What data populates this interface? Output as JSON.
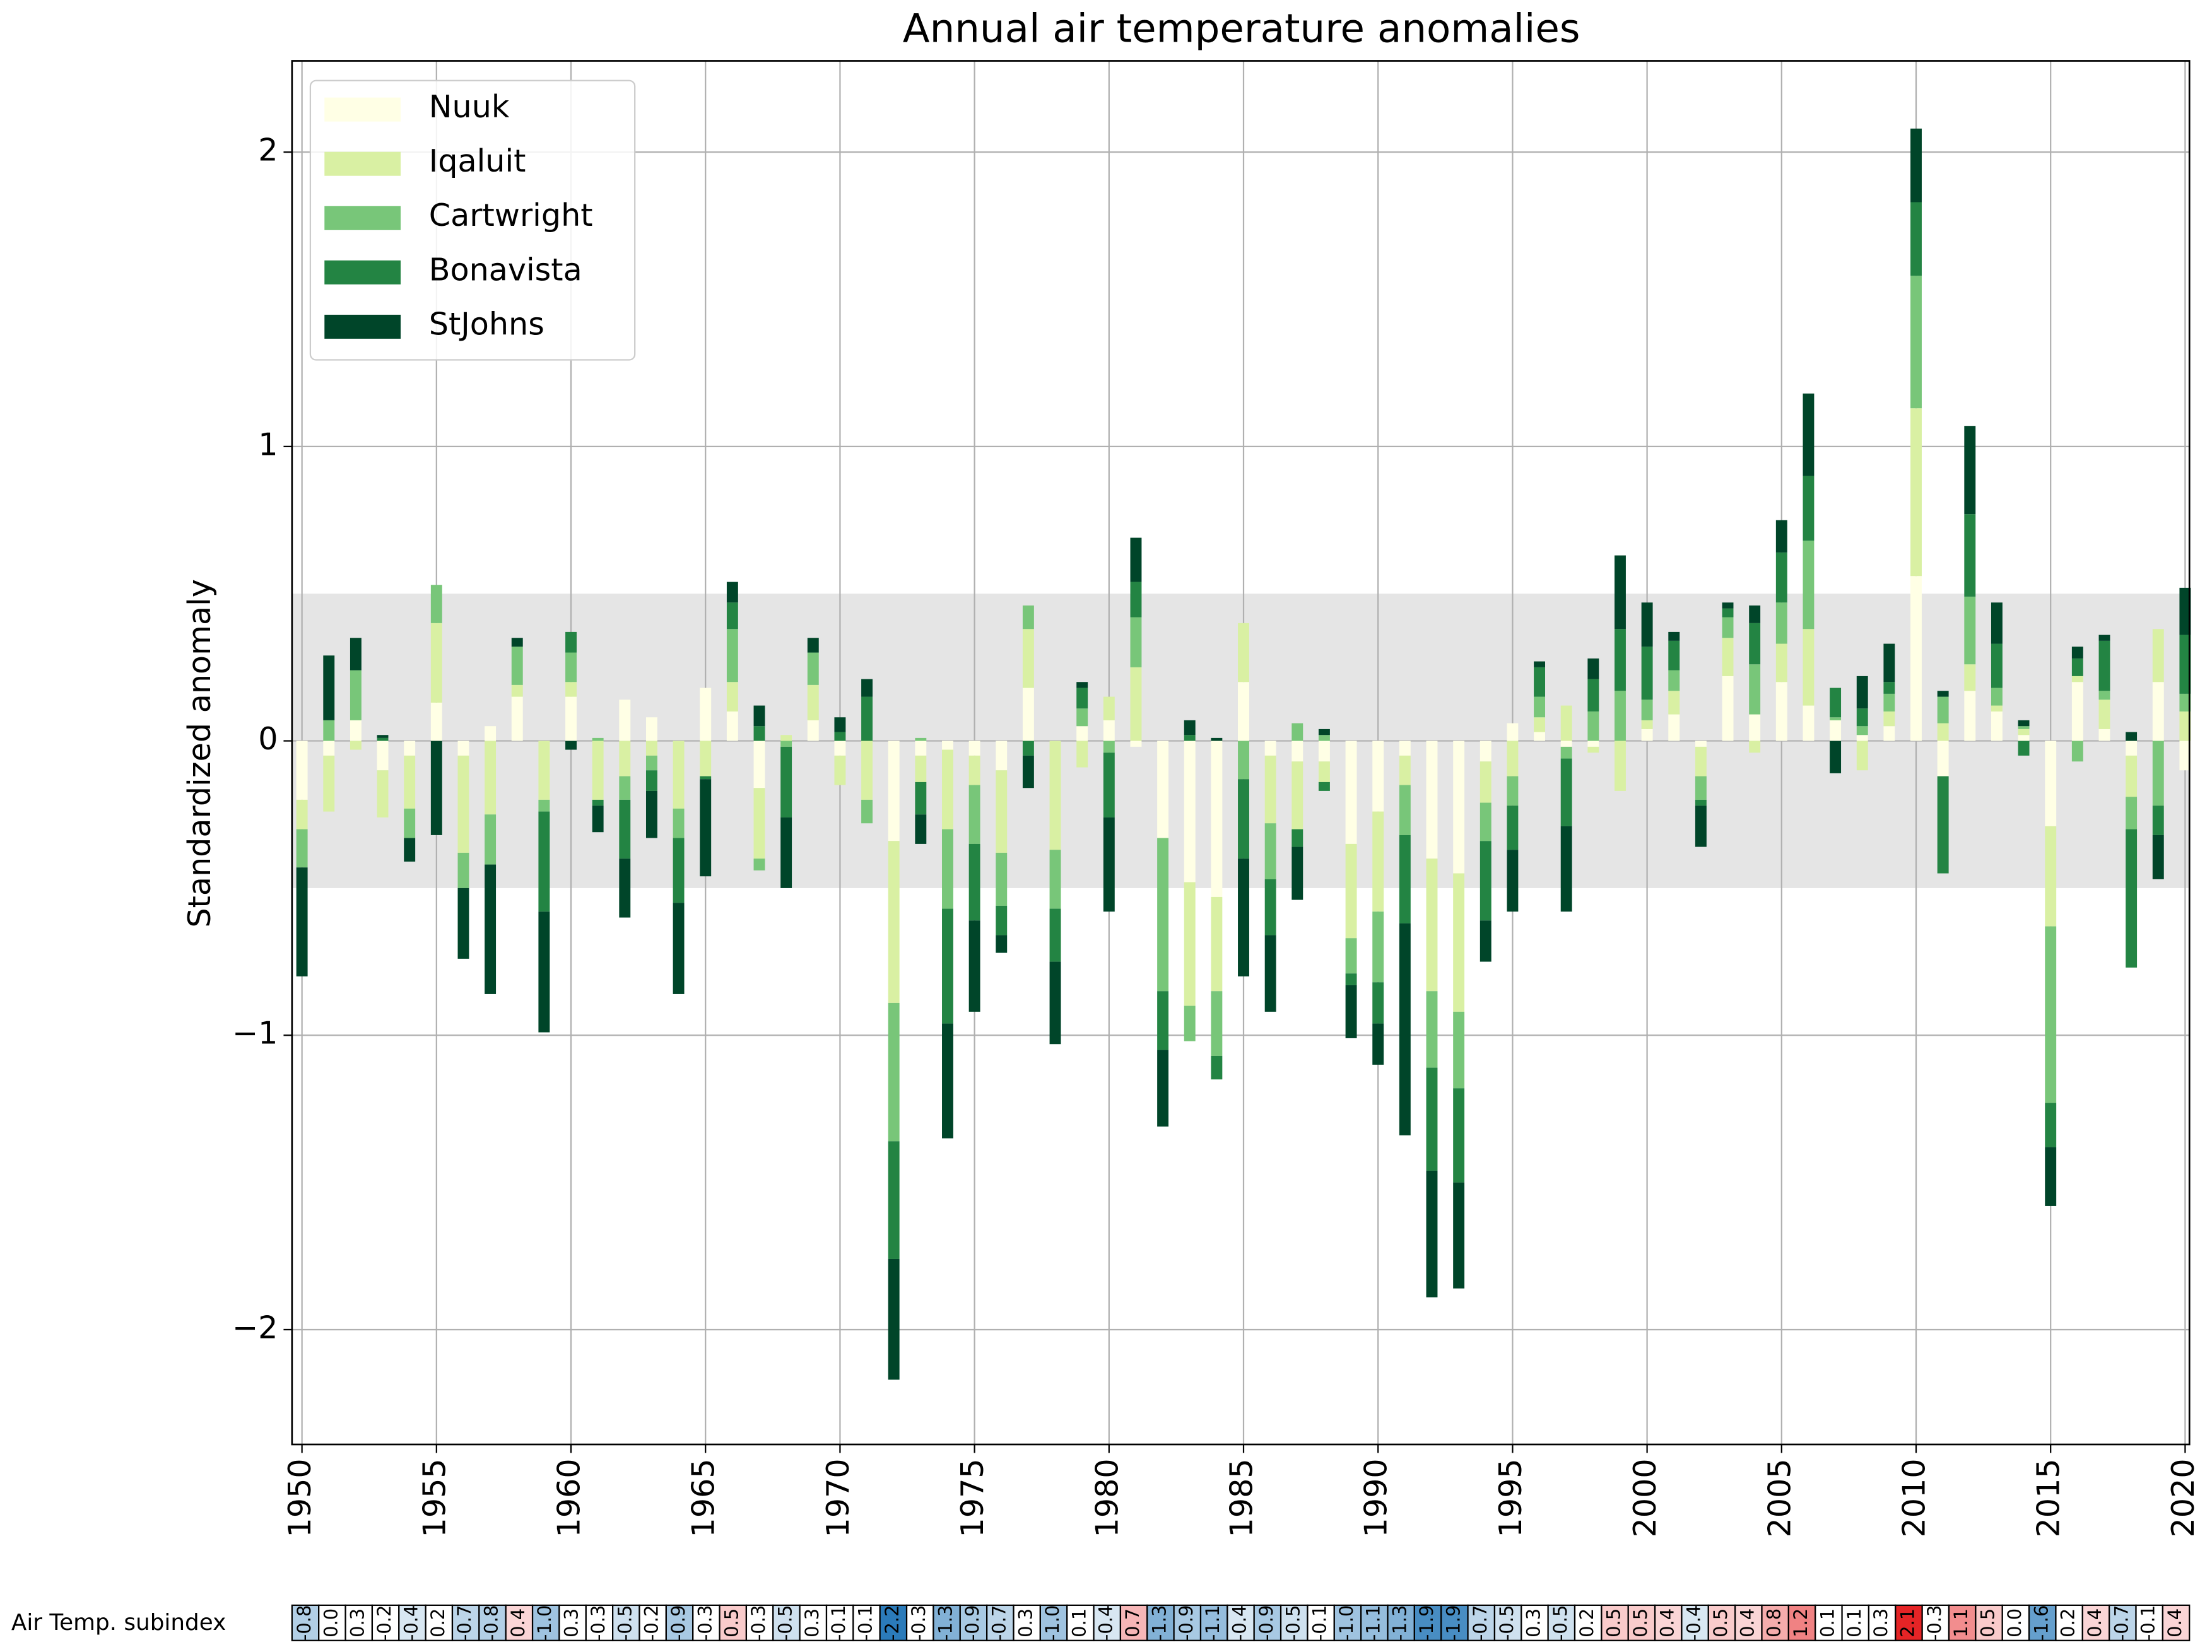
{
  "chart_data": {
    "type": "stacked_bar",
    "title": "Annual air temperature anomalies",
    "y_label": "Standardized anomaly",
    "x": [
      1950,
      1951,
      1952,
      1953,
      1954,
      1955,
      1956,
      1957,
      1958,
      1959,
      1960,
      1961,
      1962,
      1963,
      1964,
      1965,
      1966,
      1967,
      1968,
      1969,
      1970,
      1971,
      1972,
      1973,
      1974,
      1975,
      1976,
      1977,
      1978,
      1979,
      1980,
      1981,
      1982,
      1983,
      1984,
      1985,
      1986,
      1987,
      1988,
      1989,
      1990,
      1991,
      1992,
      1993,
      1994,
      1995,
      1996,
      1997,
      1998,
      1999,
      2000,
      2001,
      2002,
      2003,
      2004,
      2005,
      2006,
      2007,
      2008,
      2009,
      2010,
      2011,
      2012,
      2013,
      2014,
      2015,
      2016,
      2017,
      2018,
      2019,
      2020
    ],
    "series": [
      {
        "name": "Nuuk",
        "color": "#ffffe5",
        "values": [
          -0.2,
          -0.05,
          0.07,
          -0.1,
          -0.05,
          0.13,
          -0.05,
          0.05,
          0.15,
          0,
          0.15,
          0,
          0.14,
          0.08,
          0,
          0.18,
          0.1,
          -0.16,
          0,
          0.07,
          -0.05,
          0,
          -0.34,
          -0.05,
          -0.03,
          -0.05,
          -0.1,
          0.18,
          0,
          0.05,
          0.07,
          -0.02,
          -0.33,
          -0.48,
          -0.53,
          0.2,
          -0.05,
          -0.07,
          -0.07,
          -0.35,
          -0.24,
          -0.05,
          -0.4,
          -0.45,
          -0.07,
          0.06,
          0.03,
          -0.02,
          -0.02,
          0,
          0.04,
          0.09,
          -0.02,
          0.22,
          0.09,
          0.2,
          0.12,
          0.07,
          0.02,
          0.05,
          0.56,
          -0.12,
          0.17,
          0.1,
          0.02,
          -0.29,
          0.2,
          0.04,
          -0.05,
          0.2,
          -0.1
        ]
      },
      {
        "name": "Iqaluit",
        "color": "#d9f0a3",
        "values": [
          -0.1,
          -0.19,
          -0.03,
          -0.16,
          -0.18,
          0.27,
          -0.33,
          -0.25,
          0.04,
          -0.2,
          0.05,
          -0.2,
          -0.12,
          -0.05,
          -0.23,
          -0.12,
          0.1,
          -0.24,
          0.02,
          0.12,
          -0.1,
          -0.2,
          -0.55,
          -0.09,
          -0.27,
          -0.1,
          -0.28,
          0.2,
          -0.37,
          -0.09,
          0.08,
          0.25,
          0,
          -0.42,
          -0.32,
          0.2,
          -0.23,
          -0.23,
          -0.07,
          -0.32,
          -0.34,
          -0.1,
          -0.45,
          -0.47,
          -0.14,
          -0.12,
          0.05,
          0.12,
          -0.02,
          -0.17,
          0.03,
          0.08,
          -0.1,
          0.13,
          -0.04,
          0.13,
          0.26,
          0,
          -0.1,
          0.05,
          0.57,
          0.06,
          0.09,
          0.02,
          0.02,
          -0.34,
          0.02,
          0.1,
          -0.14,
          0.18,
          0.1
        ]
      },
      {
        "name": "Cartwright",
        "color": "#78c679",
        "values": [
          -0.13,
          0.07,
          0.17,
          0,
          -0.1,
          0.13,
          -0.12,
          -0.17,
          0.13,
          -0.04,
          0.1,
          0.01,
          -0.08,
          -0.05,
          -0.1,
          0,
          0.18,
          -0.04,
          -0.02,
          0.11,
          0,
          -0.08,
          -0.47,
          0.01,
          -0.27,
          -0.2,
          -0.18,
          0.08,
          -0.2,
          0.06,
          -0.04,
          0.17,
          -0.52,
          -0.12,
          -0.22,
          -0.13,
          -0.19,
          0.06,
          0.02,
          -0.12,
          -0.24,
          -0.17,
          -0.26,
          -0.26,
          -0.13,
          -0.1,
          0.07,
          -0.04,
          0.1,
          0.17,
          0.07,
          0.07,
          -0.08,
          0.07,
          0.17,
          0.14,
          0.3,
          0.01,
          0.03,
          0.06,
          0.45,
          0.09,
          0.23,
          0.06,
          0.01,
          -0.6,
          -0.07,
          0.03,
          -0.11,
          -0.22,
          0.06
        ]
      },
      {
        "name": "Bonavista",
        "color": "#238443",
        "values": [
          0,
          0,
          0,
          0.01,
          0,
          0,
          0,
          0,
          0,
          -0.34,
          0.07,
          -0.02,
          -0.2,
          -0.07,
          -0.22,
          -0.01,
          0.09,
          0.05,
          -0.24,
          0,
          0.03,
          0.15,
          -0.4,
          -0.11,
          -0.39,
          -0.26,
          -0.1,
          -0.05,
          -0.18,
          0.07,
          -0.22,
          0.12,
          -0.2,
          0.02,
          -0.08,
          -0.27,
          -0.19,
          -0.06,
          -0.03,
          -0.04,
          -0.14,
          -0.3,
          -0.35,
          -0.32,
          -0.27,
          -0.15,
          0.1,
          -0.23,
          0.11,
          0.21,
          0.18,
          0.1,
          -0.02,
          0.03,
          0.14,
          0.17,
          0.22,
          0.1,
          0.06,
          0.04,
          0.25,
          -0.33,
          0.28,
          0.15,
          -0.05,
          -0.15,
          0.06,
          0.17,
          -0.47,
          -0.1,
          0.2
        ]
      },
      {
        "name": "StJohns",
        "color": "#004529",
        "values": [
          -0.37,
          0.22,
          0.11,
          0.01,
          -0.08,
          -0.32,
          -0.24,
          -0.44,
          0.03,
          -0.41,
          -0.03,
          -0.09,
          -0.2,
          -0.16,
          -0.31,
          -0.33,
          0.07,
          0.07,
          -0.24,
          0.05,
          0.05,
          0.06,
          -0.41,
          -0.1,
          -0.39,
          -0.31,
          -0.06,
          -0.11,
          -0.28,
          0.02,
          -0.32,
          0.15,
          -0.26,
          0.05,
          0.01,
          -0.4,
          -0.26,
          -0.18,
          0.02,
          -0.18,
          -0.14,
          -0.72,
          -0.43,
          -0.36,
          -0.14,
          -0.21,
          0.02,
          -0.29,
          0.07,
          0.25,
          0.15,
          0.03,
          -0.14,
          0.02,
          0.06,
          0.11,
          0.28,
          -0.11,
          0.11,
          0.13,
          0.25,
          0.02,
          0.3,
          0.14,
          0.02,
          -0.2,
          0.04,
          0.02,
          0.03,
          -0.15,
          0.16
        ]
      }
    ],
    "xlim": [
      1949.63,
      2020.16
    ],
    "ylim": [
      -2.39,
      2.31
    ],
    "xticks": [
      1950,
      1955,
      1960,
      1965,
      1970,
      1975,
      1980,
      1985,
      1990,
      1995,
      2000,
      2005,
      2010,
      2015,
      2020
    ],
    "yticks": [
      {
        "value": -2,
        "label": "−2"
      },
      {
        "value": -1,
        "label": "−1"
      },
      0,
      1,
      2
    ],
    "grid": true,
    "legend": "upper left",
    "shaded_band": [
      -0.5,
      0.5
    ],
    "subindex": {
      "label": "Air Temp. subindex",
      "negative_color": "#2b7bba",
      "positive_color": "#e41a1c",
      "values": [
        -0.8,
        0.0,
        0.3,
        -0.2,
        -0.4,
        0.2,
        -0.7,
        -0.8,
        0.4,
        -1.0,
        0.3,
        -0.3,
        -0.5,
        -0.2,
        -0.9,
        -0.3,
        0.5,
        -0.3,
        -0.5,
        0.3,
        -0.1,
        -0.1,
        -2.2,
        -0.3,
        -1.3,
        -0.9,
        -0.7,
        0.3,
        -1.0,
        0.1,
        -0.4,
        0.7,
        -1.3,
        -0.9,
        -1.1,
        -0.4,
        -0.9,
        -0.5,
        -0.1,
        -1.0,
        -1.1,
        -1.3,
        -1.9,
        -1.9,
        -0.7,
        -0.5,
        0.3,
        -0.5,
        0.2,
        0.5,
        0.5,
        0.4,
        -0.4,
        0.5,
        0.4,
        0.8,
        1.2,
        0.1,
        0.1,
        0.3,
        2.1,
        -0.3,
        1.1,
        0.5,
        0.0,
        -1.6,
        0.2,
        0.4,
        -0.7,
        -0.1,
        0.4
      ],
      "value_labels": [
        "-0.8",
        "0.0",
        "0.3",
        "-0.2",
        "-0.4",
        "0.2",
        "-0.7",
        "-0.8",
        "0.4",
        "-1.0",
        "0.3",
        "-0.3",
        "-0.5",
        "-0.2",
        "-0.9",
        "-0.3",
        "0.5",
        "-0.3",
        "-0.5",
        "0.3",
        "-0.1",
        "-0.1",
        "-2.2",
        "-0.3",
        "-1.3",
        "-0.9",
        "-0.7",
        "0.3",
        "-1.0",
        "0.1",
        "-0.4",
        "0.7",
        "-1.3",
        "-0.9",
        "-1.1",
        "-0.4",
        "-0.9",
        "-0.5",
        "-0.1",
        "-1.0",
        "-1.1",
        "-1.3",
        "-1.9",
        "-1.9",
        "-0.7",
        "-0.5",
        "0.3",
        "-0.5",
        "0.2",
        "0.5",
        "0.5",
        "0.4",
        "-0.4",
        "0.5",
        "0.4",
        "0.8",
        "1.2",
        "0.1",
        "0.1",
        "0.3",
        "2.1",
        "-0.3",
        "1.1",
        "0.5",
        "0.0",
        "-1.6",
        "0.2",
        "0.4",
        "-0.7",
        "-0.1",
        "0.4"
      ]
    }
  }
}
